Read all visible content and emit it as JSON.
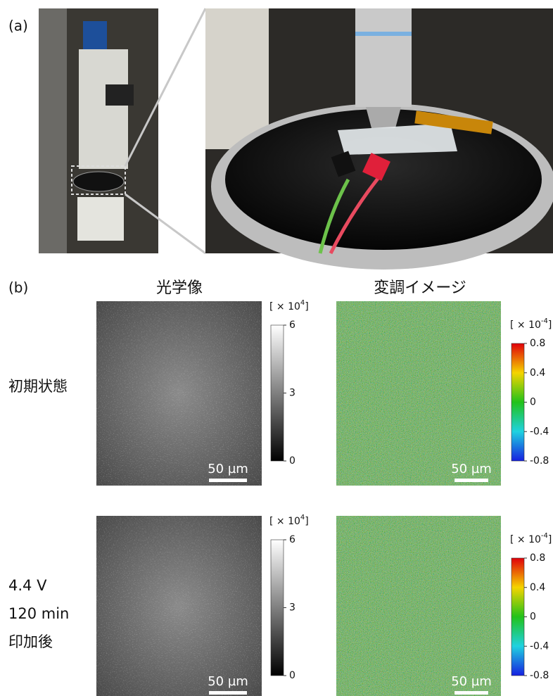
{
  "panel_a": {
    "label": "(a)"
  },
  "panel_b": {
    "label": "(b)",
    "columns": [
      "光学像",
      "変調イメージ"
    ],
    "rows": [
      {
        "label_lines": [
          "初期状態"
        ]
      },
      {
        "label_lines": [
          "4.4 V",
          "120 min",
          "印加後"
        ]
      }
    ],
    "scale_bar": "50 µm",
    "optical_colorbar": {
      "prefix": "[ × 10",
      "exponent": "4",
      "suffix": "]",
      "ticks": [
        6,
        3,
        0
      ]
    },
    "modulation_colorbar": {
      "prefix": "[ × 10",
      "exponent": "-4",
      "suffix": "]",
      "ticks": [
        0.8,
        0.4,
        0,
        -0.4,
        -0.8
      ]
    }
  }
}
